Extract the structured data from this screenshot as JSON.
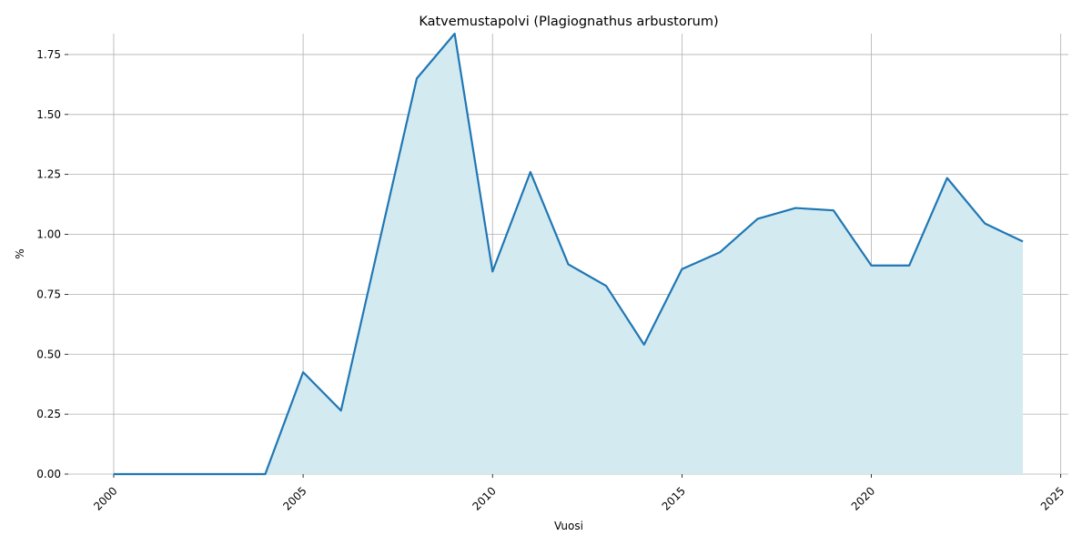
{
  "chart_data": {
    "type": "area",
    "title": "Katvemustapolvi (Plagiognathus arbustorum)",
    "x_label": "Vuosi",
    "y_label": "%",
    "x": [
      2000,
      2001,
      2002,
      2003,
      2004,
      2005,
      2006,
      2007,
      2008,
      2009,
      2010,
      2011,
      2012,
      2013,
      2014,
      2015,
      2016,
      2017,
      2018,
      2019,
      2020,
      2021,
      2022,
      2023,
      2024
    ],
    "series": [
      {
        "color": "#1f77b4",
        "fill": "#d4eaf1",
        "values": [
          0,
          0,
          0,
          0,
          0,
          0.425,
          0.265,
          0.96,
          1.65,
          1.837,
          0.845,
          1.26,
          0.875,
          0.785,
          0.54,
          0.855,
          0.925,
          1.065,
          1.11,
          1.1,
          0.87,
          0.87,
          1.235,
          1.045,
          0.97
        ]
      }
    ],
    "xlim": [
      1998.8,
      2025.2
    ],
    "xticks": [
      2000,
      2005,
      2010,
      2015,
      2020,
      2025
    ],
    "ylim": [
      0,
      1.837
    ],
    "yticks": [
      {
        "value": 0,
        "label": "0.00"
      },
      {
        "value": 0.25,
        "label": "0.25"
      },
      {
        "value": 0.5,
        "label": "0.50"
      },
      {
        "value": 0.75,
        "label": "0.75"
      },
      {
        "value": 1.0,
        "label": "1.00"
      },
      {
        "value": 1.25,
        "label": "1.25"
      },
      {
        "value": 1.5,
        "label": "1.50"
      },
      {
        "value": 1.75,
        "label": "1.75"
      }
    ],
    "grid": true
  }
}
